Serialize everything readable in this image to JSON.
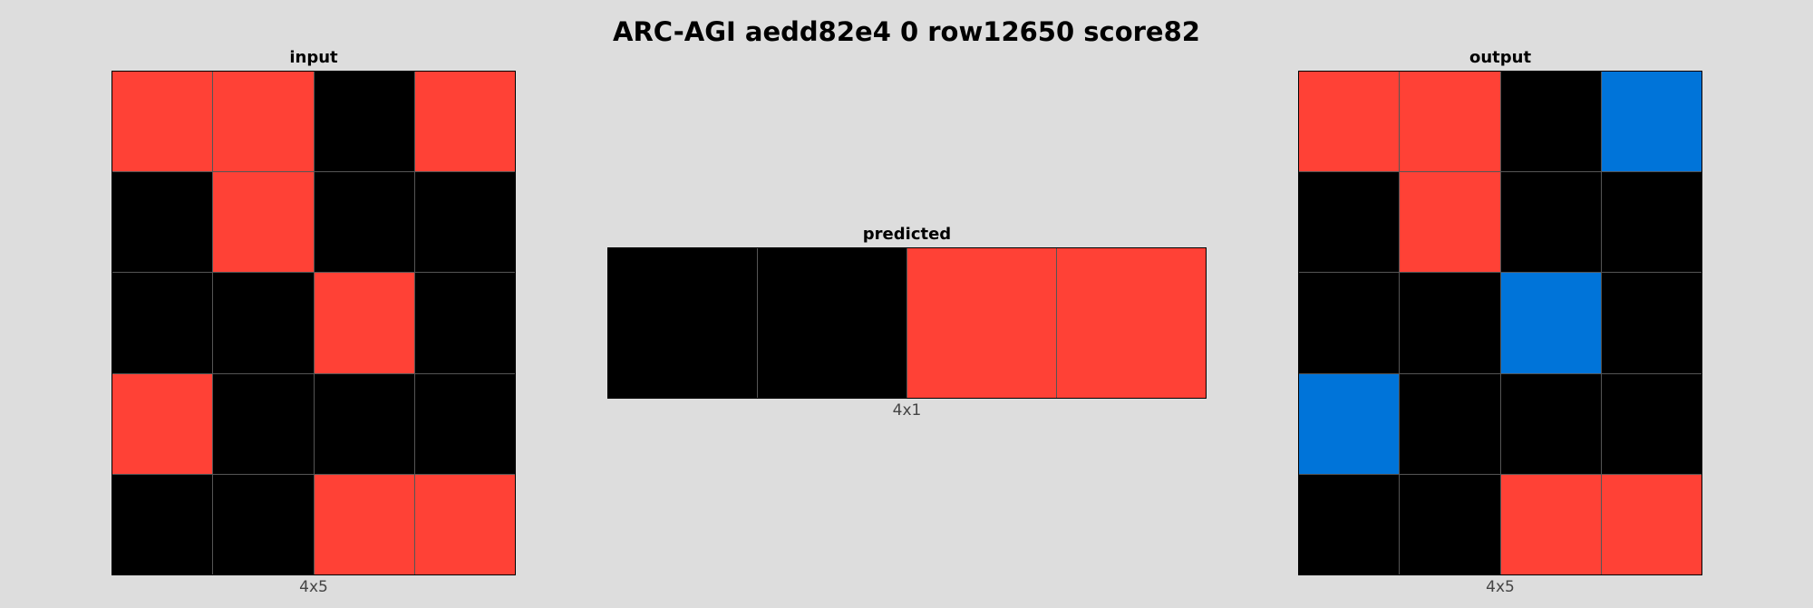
{
  "title": "ARC-AGI aedd82e4 0 row12650 score82",
  "colors": {
    "0": "#000000",
    "1": "#0074d9",
    "2": "#ff4136"
  },
  "panels": {
    "input": {
      "label": "input",
      "size_label": "4x5",
      "grid": [
        [
          2,
          2,
          0,
          2
        ],
        [
          0,
          2,
          0,
          0
        ],
        [
          0,
          0,
          2,
          0
        ],
        [
          2,
          0,
          0,
          0
        ],
        [
          0,
          0,
          2,
          2
        ]
      ]
    },
    "predicted": {
      "label": "predicted",
      "size_label": "4x1",
      "grid": [
        [
          0,
          0,
          2,
          2
        ]
      ]
    },
    "output": {
      "label": "output",
      "size_label": "4x5",
      "grid": [
        [
          2,
          2,
          0,
          1
        ],
        [
          0,
          2,
          0,
          0
        ],
        [
          0,
          0,
          1,
          0
        ],
        [
          1,
          0,
          0,
          0
        ],
        [
          0,
          0,
          2,
          2
        ]
      ]
    }
  }
}
